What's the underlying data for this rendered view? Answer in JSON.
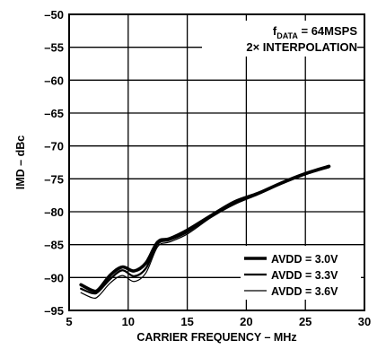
{
  "chart_data": {
    "type": "line",
    "title": "",
    "xlabel": "CARRIER FREQUENCY – MHz",
    "ylabel": "IMD – dBc",
    "xlim": [
      5,
      30
    ],
    "ylim": [
      -95,
      -50
    ],
    "x_ticks": [
      5,
      10,
      15,
      20,
      25,
      30
    ],
    "y_ticks": [
      -50,
      -55,
      -60,
      -65,
      -70,
      -75,
      -80,
      -85,
      -90,
      -95
    ],
    "grid": true,
    "legend_position": "bottom-right",
    "annotations": [
      {
        "prefix": "f",
        "sub": "DATA",
        "suffix": " = 64MSPS"
      },
      {
        "text": "2× INTERPOLATION"
      }
    ],
    "series": [
      {
        "name": "AVDD = 3.0V",
        "line_style": "thick",
        "x": [
          6,
          7,
          7.5,
          8.5,
          9.5,
          10.5,
          11.5,
          12.5,
          13.5,
          15,
          17,
          19,
          21,
          23,
          25,
          27
        ],
        "y": [
          -91.1,
          -92,
          -91.8,
          -89.6,
          -88.4,
          -89,
          -87.8,
          -84.6,
          -84.1,
          -82.8,
          -80.6,
          -78.5,
          -77.2,
          -75.6,
          -74.2,
          -73.1
        ]
      },
      {
        "name": "AVDD = 3.3V",
        "line_style": "medium",
        "x": [
          6,
          7,
          7.5,
          8.5,
          9.5,
          10.5,
          11.5,
          12.5,
          13.5,
          15,
          17,
          19,
          21,
          23,
          25,
          27
        ],
        "y": [
          -91.7,
          -92.4,
          -92.1,
          -90.2,
          -88.9,
          -89.8,
          -88.6,
          -84.9,
          -84.3,
          -83.1,
          -80.7,
          -78.7,
          -77.3,
          -75.7,
          -74.3,
          -73.2
        ]
      },
      {
        "name": "AVDD = 3.6V",
        "line_style": "thin",
        "x": [
          6,
          7,
          7.5,
          8.5,
          9.5,
          10.5,
          11.5,
          12.5,
          13.5,
          15,
          17,
          19,
          21,
          23,
          25,
          27
        ],
        "y": [
          -92.3,
          -93.1,
          -92.8,
          -90.8,
          -89.7,
          -90.6,
          -89.3,
          -85.3,
          -84.6,
          -83.4,
          -80.9,
          -78.9,
          -77.4,
          -75.8,
          -74.4,
          -73.3
        ]
      }
    ]
  }
}
